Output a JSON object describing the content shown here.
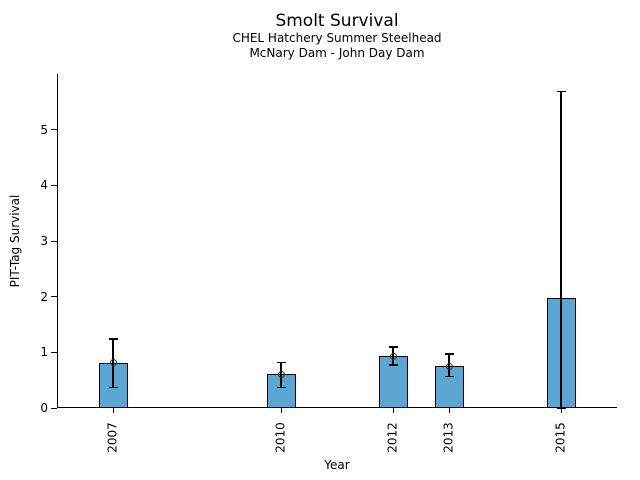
{
  "chart_data": {
    "type": "bar",
    "title": "Smolt Survival",
    "subtitle1": "CHEL Hatchery Summer Steelhead",
    "subtitle2": "McNary Dam - John Day Dam",
    "xlabel": "Year",
    "ylabel": "PIT-Tag Survival",
    "x_tick_labels": [
      "2007",
      "2010",
      "2012",
      "2013",
      "2015"
    ],
    "y_tick_labels": [
      "0",
      "1",
      "2",
      "3",
      "4",
      "5"
    ],
    "xlim": [
      2006,
      2016
    ],
    "ylim": [
      0,
      6
    ],
    "grid": false,
    "legend": "none",
    "bar_color": "#5BA7D1",
    "bar_edge_color": "#000000",
    "error_color": "#000000",
    "series": [
      {
        "year": 2007,
        "value": 0.81,
        "ci_low": 0.37,
        "ci_high": 1.24,
        "marker": true
      },
      {
        "year": 2010,
        "value": 0.61,
        "ci_low": 0.37,
        "ci_high": 0.82,
        "marker": true
      },
      {
        "year": 2012,
        "value": 0.93,
        "ci_low": 0.77,
        "ci_high": 1.1,
        "marker": true
      },
      {
        "year": 2013,
        "value": 0.75,
        "ci_low": 0.57,
        "ci_high": 0.97,
        "marker": true
      },
      {
        "year": 2015,
        "value": 1.97,
        "ci_low": 0.0,
        "ci_high": 5.69,
        "marker": false
      }
    ]
  }
}
